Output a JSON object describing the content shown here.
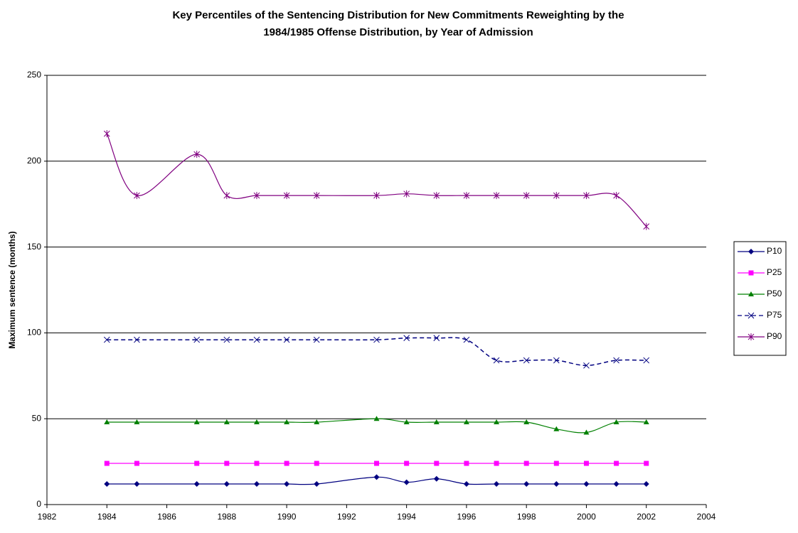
{
  "chart_data": {
    "type": "line",
    "title": [
      "Key Percentiles of the Sentencing Distribution for New Commitments Reweighting by the",
      "1984/1985 Offense Distribution, by Year of Admission"
    ],
    "y_label": "Maximum sentence (months)",
    "x": [
      1984,
      1985,
      1987,
      1988,
      1989,
      1990,
      1991,
      1993,
      1994,
      1995,
      1996,
      1997,
      1998,
      1999,
      2000,
      2001,
      2002
    ],
    "series": [
      {
        "name": "P10",
        "color": "#000080",
        "marker": "diamond",
        "dash": false,
        "values": [
          12,
          12,
          12,
          12,
          12,
          12,
          12,
          16,
          13,
          15,
          12,
          12,
          12,
          12,
          12,
          12,
          12
        ]
      },
      {
        "name": "P25",
        "color": "#ff00ff",
        "marker": "square",
        "dash": false,
        "values": [
          24,
          24,
          24,
          24,
          24,
          24,
          24,
          24,
          24,
          24,
          24,
          24,
          24,
          24,
          24,
          24,
          24
        ]
      },
      {
        "name": "P50",
        "color": "#008000",
        "marker": "triangle",
        "dash": false,
        "values": [
          48,
          48,
          48,
          48,
          48,
          48,
          48,
          50,
          48,
          48,
          48,
          48,
          48,
          44,
          42,
          48,
          48
        ]
      },
      {
        "name": "P75",
        "color": "#000080",
        "marker": "x",
        "dash": true,
        "values": [
          96,
          96,
          96,
          96,
          96,
          96,
          96,
          96,
          97,
          97,
          96,
          84,
          84,
          84,
          81,
          84,
          84
        ]
      },
      {
        "name": "P90",
        "color": "#800080",
        "marker": "star",
        "dash": false,
        "values": [
          216,
          180,
          204,
          180,
          180,
          180,
          180,
          180,
          181,
          180,
          180,
          180,
          180,
          180,
          180,
          180,
          162
        ]
      }
    ],
    "xlim": [
      1982,
      2004
    ],
    "xticks": [
      1982,
      1984,
      1986,
      1988,
      1990,
      1992,
      1994,
      1996,
      1998,
      2000,
      2002,
      2004
    ],
    "ylim": [
      0,
      250
    ],
    "yticks": [
      0,
      50,
      100,
      150,
      200,
      250
    ],
    "grid": true,
    "smooth": true,
    "legend": "right"
  }
}
